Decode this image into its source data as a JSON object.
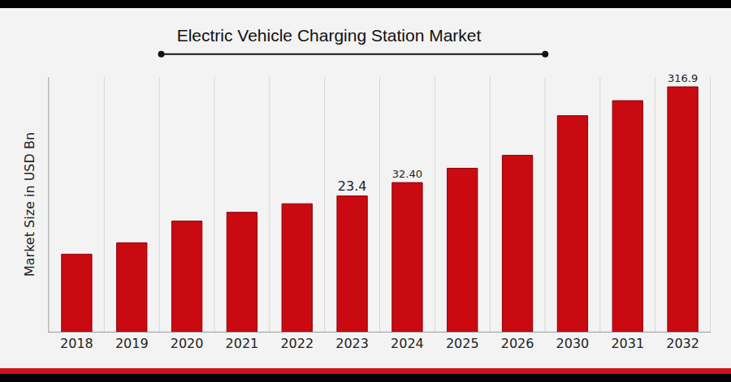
{
  "chart_data": {
    "type": "bar",
    "title": "Electric Vehicle Charging Station Market",
    "y_label": "Market Size in USD Bn",
    "categories": [
      "2018",
      "2019",
      "2020",
      "2021",
      "2022",
      "2023",
      "2024",
      "2025",
      "2026",
      "2030",
      "2031",
      "2032"
    ],
    "values": [
      5.2,
      7.1,
      12.5,
      15.6,
      19.3,
      23.4,
      32.4,
      45.8,
      62.5,
      160.2,
      228.6,
      316.9
    ],
    "value_labels": [
      null,
      null,
      null,
      null,
      null,
      "23.4",
      "32.40",
      null,
      null,
      null,
      null,
      "316.9"
    ],
    "data_labels": true,
    "color": "#c90a10",
    "log": "y",
    "ylim": [
      1,
      400
    ],
    "tick_labels": "x",
    "grid": true
  }
}
